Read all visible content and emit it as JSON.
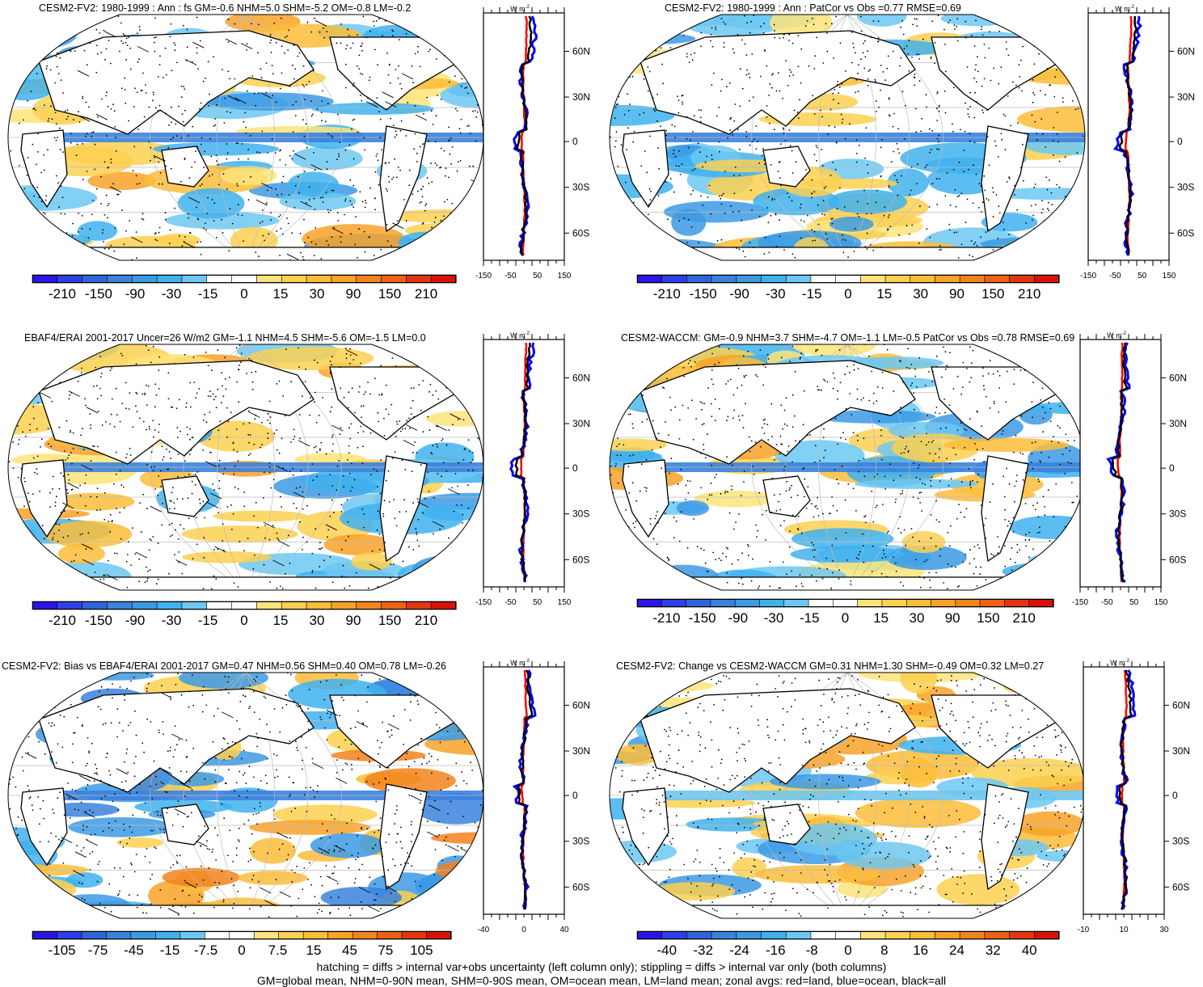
{
  "panels": [
    {
      "id": "p1",
      "title": "CESM2-FV2: 1980-1999 : Ann : fs GM=-0.6 NHM=5.0 SHM=-5.2 OM=-0.8 LM=-0.2",
      "hatching": true,
      "colorbar_labels": [
        "-210",
        "-150",
        "-90",
        "-30",
        "-15",
        "0",
        "15",
        "30",
        "90",
        "150",
        "210"
      ],
      "zonal_ticks": [
        "-150",
        "-50",
        "50",
        "150"
      ],
      "zonal_lat_labels": [
        "60N",
        "30N",
        "0",
        "30S",
        "60S"
      ],
      "zonal_units": "W m",
      "zonal_units_sup": "-2"
    },
    {
      "id": "p2",
      "title": "CESM2-FV2: 1980-1999 : Ann : PatCor vs Obs =0.77 RMSE=0.69",
      "hatching": false,
      "colorbar_labels": [
        "-210",
        "-150",
        "-90",
        "-30",
        "-15",
        "0",
        "15",
        "30",
        "90",
        "150",
        "210"
      ],
      "zonal_ticks": [
        "-150",
        "-50",
        "50",
        "150"
      ],
      "zonal_lat_labels": [
        "60N",
        "30N",
        "0",
        "30S",
        "60S"
      ],
      "zonal_units": "W m",
      "zonal_units_sup": "-2"
    },
    {
      "id": "p3",
      "title": "EBAF4/ERAI 2001-2017 Uncer=26 W/m2 GM=-1.1 NHM=4.5 SHM=-5.6 OM=-1.5 LM=0.0",
      "hatching": true,
      "colorbar_labels": [
        "-210",
        "-150",
        "-90",
        "-30",
        "-15",
        "0",
        "15",
        "30",
        "90",
        "150",
        "210"
      ],
      "zonal_ticks": [
        "-150",
        "-50",
        "50",
        "150"
      ],
      "zonal_lat_labels": [
        "60N",
        "30N",
        "0",
        "30S",
        "60S"
      ],
      "zonal_units": "W m",
      "zonal_units_sup": "-2"
    },
    {
      "id": "p4",
      "title": "CESM2-WACCM: GM=-0.9 NHM=3.7 SHM=-4.7 OM=-1.1 LM=-0.5 PatCor vs Obs =0.78 RMSE=0.69",
      "hatching": false,
      "colorbar_labels": [
        "-210",
        "-150",
        "-90",
        "-30",
        "-15",
        "0",
        "15",
        "30",
        "90",
        "150",
        "210"
      ],
      "zonal_ticks": [
        "-150",
        "-50",
        "50",
        "150"
      ],
      "zonal_lat_labels": [
        "60N",
        "30N",
        "0",
        "30S",
        "60S"
      ],
      "zonal_units": "W m",
      "zonal_units_sup": "-2"
    },
    {
      "id": "p5",
      "title": "CESM2-FV2: Bias vs EBAF4/ERAI 2001-2017 GM=0.47 NHM=0.56 SHM=0.40 OM=0.78 LM=-0.26",
      "hatching": true,
      "colorbar_labels": [
        "-105",
        "-75",
        "-45",
        "-15",
        "-7.5",
        "0",
        "7.5",
        "15",
        "45",
        "75",
        "105"
      ],
      "zonal_ticks": [
        "-40",
        "0",
        "40"
      ],
      "zonal_lat_labels": [
        "60N",
        "30N",
        "0",
        "30S",
        "60S"
      ],
      "zonal_units": "W m",
      "zonal_units_sup": "-2"
    },
    {
      "id": "p6",
      "title": "CESM2-FV2: Change vs CESM2-WACCM GM=0.31 NHM=1.30 SHM=-0.49 OM=0.32 LM=0.27",
      "hatching": false,
      "colorbar_labels": [
        "-40",
        "-32",
        "-24",
        "-16",
        "-8",
        "0",
        "8",
        "16",
        "24",
        "32",
        "40"
      ],
      "zonal_ticks": [
        "-10",
        "10",
        "30"
      ],
      "zonal_lat_labels": [
        "60N",
        "30N",
        "0",
        "30S",
        "60S"
      ],
      "zonal_units": "W m",
      "zonal_units_sup": "-2"
    }
  ],
  "colors": {
    "palette": [
      "#2a14e6",
      "#2f3fe8",
      "#3064dc",
      "#3a82de",
      "#3c9ae4",
      "#3fb2ee",
      "#6cc8f2",
      "#ffffff",
      "#ffffff",
      "#fde47a",
      "#fcd050",
      "#fbbd3a",
      "#f8a228",
      "#f3831c",
      "#ec6214",
      "#e3360e",
      "#d81208"
    ],
    "land_line": "#000000",
    "zonal_land": "#ff0000",
    "zonal_ocean": "#0000ff",
    "zonal_all": "#000000"
  },
  "footer": {
    "line1": "hatching = diffs > internal var+obs uncertainty (left column only); stippling = diffs > internal var only (both columns)",
    "line2": "GM=global mean, NHM=0-90N mean, SHM=0-90S mean, OM=ocean mean, LM=land mean; zonal avgs: red=land, blue=ocean, black=all"
  }
}
